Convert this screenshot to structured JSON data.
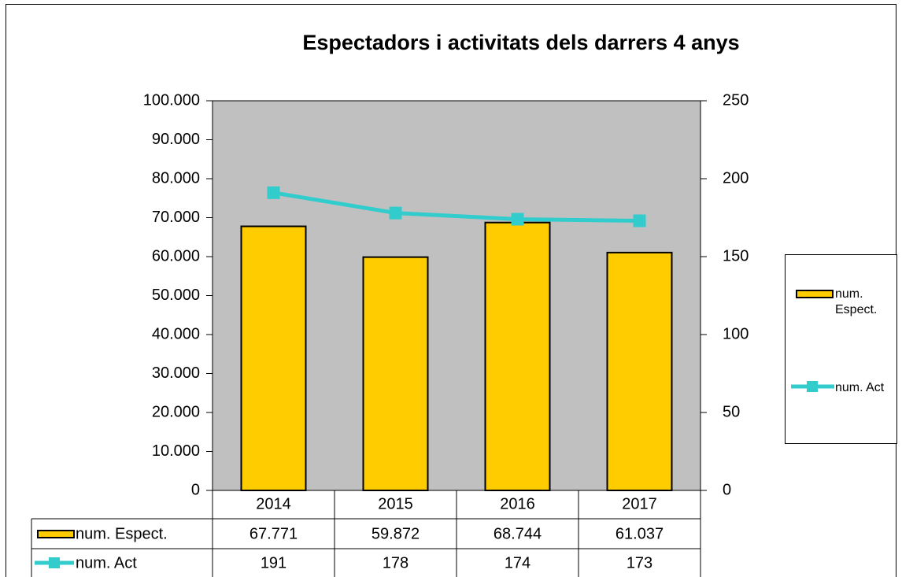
{
  "chart_data": {
    "type": "bar_line_dual_axis",
    "title": "Espectadors i activitats dels darrers 4 anys",
    "categories": [
      "2014",
      "2015",
      "2016",
      "2017"
    ],
    "series": [
      {
        "name": "num. Espect.",
        "color": "#ffcc00",
        "values": [
          67771,
          59872,
          68744,
          61037
        ],
        "value_labels": [
          "67.771",
          "59.872",
          "68.744",
          "61.037"
        ]
      },
      {
        "name": "num. Act",
        "color": "#33cccc",
        "axis": "y2",
        "values": [
          191,
          178,
          174,
          173
        ]
      }
    ],
    "ylim": [
      0,
      100000
    ],
    "yticks": [
      {
        "value": 0,
        "label": "0"
      },
      {
        "value": 10000,
        "label": "10.000"
      },
      {
        "value": 20000,
        "label": "20.000"
      },
      {
        "value": 30000,
        "label": "30.000"
      },
      {
        "value": 40000,
        "label": "40.000"
      },
      {
        "value": 50000,
        "label": "50.000"
      },
      {
        "value": 60000,
        "label": "60.000"
      },
      {
        "value": 70000,
        "label": "70.000"
      },
      {
        "value": 80000,
        "label": "80.000"
      },
      {
        "value": 90000,
        "label": "90.000"
      },
      {
        "value": 100000,
        "label": "100.000"
      }
    ],
    "y2lim": [
      0,
      250
    ],
    "y2ticks": [
      0,
      50,
      100,
      150,
      200,
      250
    ],
    "plot_background": "#c0c0c0",
    "legend": "right"
  }
}
